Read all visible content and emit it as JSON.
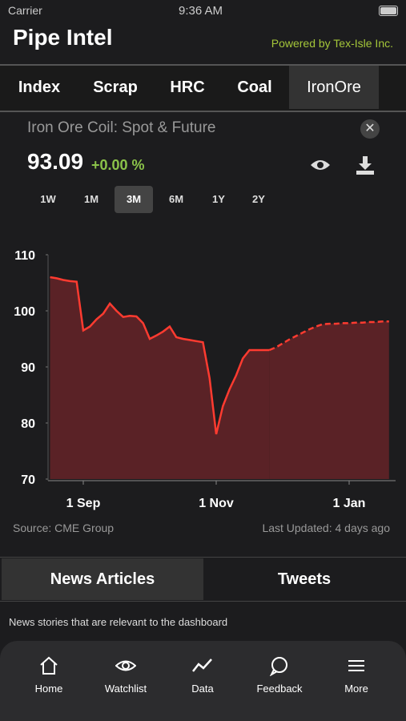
{
  "status_bar": {
    "carrier": "Carrier",
    "time": "9:36 AM"
  },
  "header": {
    "title": "Pipe Intel",
    "powered_by": "Powered by Tex-Isle Inc."
  },
  "tabs": [
    "Index",
    "Scrap",
    "HRC",
    "Coal",
    "IronOre"
  ],
  "panel": {
    "title": "Iron Ore Coil: Spot & Future",
    "price": "93.09",
    "change": "+0.00 %"
  },
  "ranges": [
    "1W",
    "1M",
    "3M",
    "6M",
    "1Y",
    "2Y"
  ],
  "chart_data": {
    "type": "line",
    "categories": [
      null,
      null,
      null,
      null,
      null,
      "1 Sep",
      null,
      null,
      null,
      null,
      null,
      null,
      null,
      null,
      null,
      null,
      null,
      null,
      null,
      null,
      null,
      null,
      null,
      null,
      null,
      "1 Nov",
      null,
      null,
      null,
      null,
      null,
      null,
      null,
      null,
      null,
      null,
      null,
      null,
      null,
      null,
      null,
      null,
      null,
      null,
      null,
      "1 Jan",
      null,
      null,
      null,
      null,
      null,
      null
    ],
    "series": [
      {
        "color": "#ff3b30",
        "dashed": false,
        "values": [
          106,
          105.8,
          105.5,
          105.3,
          105.2,
          96.5,
          97.2,
          98.5,
          99.5,
          101.3,
          100,
          98.9,
          99.1,
          99,
          97.8,
          95,
          95.6,
          96.3,
          97.2,
          95.3,
          95,
          94.8,
          94.6,
          94.4,
          88,
          78,
          83,
          86,
          88.5,
          91.5,
          93,
          93,
          93,
          93,
          null,
          null,
          null,
          null,
          null,
          null,
          null,
          null,
          null,
          null,
          null,
          null,
          null,
          null,
          null,
          null,
          null,
          null
        ]
      },
      {
        "color": "#ff3b30",
        "dashed": true,
        "values": [
          null,
          null,
          null,
          null,
          null,
          null,
          null,
          null,
          null,
          null,
          null,
          null,
          null,
          null,
          null,
          null,
          null,
          null,
          null,
          null,
          null,
          null,
          null,
          null,
          null,
          null,
          null,
          null,
          null,
          null,
          null,
          null,
          null,
          93,
          93.5,
          94.2,
          94.9,
          95.5,
          96.1,
          96.7,
          97.2,
          97.6,
          97.7,
          97.7,
          97.8,
          97.8,
          97.9,
          97.9,
          98,
          98,
          98.1,
          98.1
        ]
      }
    ],
    "ylim": [
      70,
      110
    ],
    "yticks": [
      70,
      80,
      90,
      100,
      110
    ],
    "area_color": "#5a2226"
  },
  "source": "Source: CME Group",
  "updated": "Last Updated: 4 days ago",
  "news_tabs": [
    "News Articles",
    "Tweets"
  ],
  "news_description": "News stories that are relevant to the dashboard",
  "nav": [
    "Home",
    "Watchlist",
    "Data",
    "Feedback",
    "More"
  ]
}
